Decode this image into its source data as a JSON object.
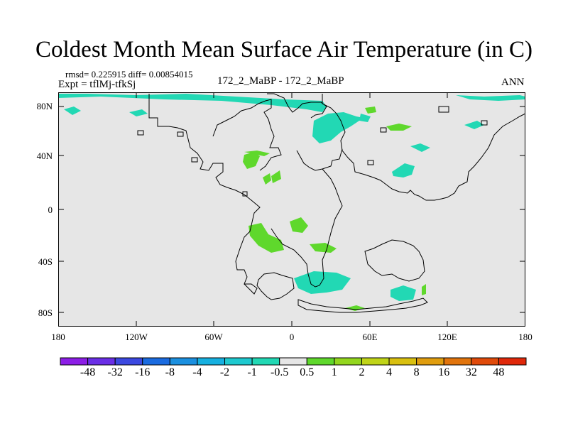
{
  "title": "Coldest Month Mean Surface Air Temperature (in C)",
  "stats": "rmsd= 0.225915  diff= 0.00854015",
  "expt": "Expt = tflMj-tfkSj",
  "subtitle": "172_2_MaBP - 172_2_MaBP",
  "season": "ANN",
  "chart_data": {
    "type": "heatmap",
    "projection": "cylindrical-equidistant",
    "lon_range": [
      -180,
      180
    ],
    "lat_range": [
      -90,
      90
    ],
    "lat_ticks": [
      "80N",
      "40N",
      "0",
      "40S",
      "80S"
    ],
    "lon_ticks": [
      "180",
      "120W",
      "60W",
      "0",
      "60E",
      "120E",
      "180"
    ],
    "background_value_range": "-0.5 to 0.5",
    "colorbar": {
      "labels": [
        "-48",
        "-32",
        "-16",
        "-8",
        "-4",
        "-2",
        "-1",
        "-0.5",
        "0.5",
        "1",
        "2",
        "4",
        "8",
        "16",
        "32",
        "48"
      ],
      "colors": [
        "#8c1ee6",
        "#6a2ee6",
        "#3b48e0",
        "#1a6be0",
        "#1b90e0",
        "#16b0e0",
        "#1ec9cf",
        "#22d8b4",
        "#e6e6e6",
        "#5fd82c",
        "#93d61e",
        "#c0d418",
        "#d9c010",
        "#e09d0e",
        "#e1740c",
        "#e04a0a",
        "#e0280a"
      ]
    },
    "anomalies": [
      {
        "name": "arctic-cool-band",
        "sign": "negative",
        "range": "-1 to -0.5",
        "lat": [
          78,
          88
        ],
        "lon": [
          -175,
          20
        ]
      },
      {
        "name": "siberia-cool",
        "sign": "negative",
        "range": "-1 to -0.5",
        "lat": [
          45,
          70
        ],
        "lon": [
          15,
          55
        ]
      },
      {
        "name": "east-asia-cool",
        "sign": "negative",
        "range": "-1 to -0.5",
        "lat": [
          20,
          35
        ],
        "lon": [
          70,
          85
        ]
      },
      {
        "name": "atlantic-warm",
        "sign": "positive",
        "range": "0.5 to 1",
        "lat": [
          10,
          40
        ],
        "lon": [
          -60,
          -25
        ]
      },
      {
        "name": "south-atlantic-warm",
        "sign": "positive",
        "range": "0.5 to 1",
        "lat": [
          -35,
          -5
        ],
        "lon": [
          -45,
          0
        ]
      },
      {
        "name": "southern-ocean-cool",
        "sign": "negative",
        "range": "-1 to -0.5",
        "lat": [
          -65,
          -50
        ],
        "lon": [
          10,
          90
        ]
      }
    ]
  }
}
